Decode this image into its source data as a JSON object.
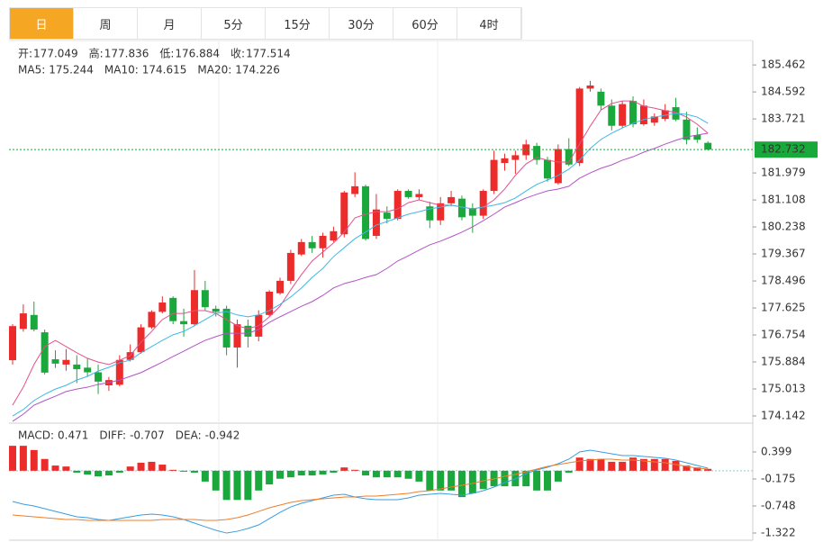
{
  "tabs": {
    "items": [
      "日",
      "周",
      "月",
      "5分",
      "15分",
      "30分",
      "60分",
      "4时"
    ],
    "active": 0
  },
  "chart_data": [
    {
      "type": "candlestick",
      "readout": [
        {
          "label": "开:",
          "value": 177.049
        },
        {
          "label": "高:",
          "value": 177.836
        },
        {
          "label": "低:",
          "value": 176.884
        },
        {
          "label": "收:",
          "value": 177.514
        }
      ],
      "readout_color": "#e0312b",
      "ma_readout": [
        {
          "label": "MA5:",
          "value": 175.244,
          "color": "#e4508c"
        },
        {
          "label": "MA10:",
          "value": 174.615,
          "color": "#3fb8e6"
        },
        {
          "label": "MA20:",
          "value": 174.226,
          "color": "#b353c7"
        }
      ],
      "up_color": "#ec2b2b",
      "down_color": "#1aa83c",
      "open": [
        175.94,
        176.95,
        177.4,
        176.84,
        175.97,
        175.8,
        175.8,
        175.7,
        175.55,
        175.13,
        175.15,
        175.95,
        176.2,
        177.0,
        177.5,
        177.95,
        177.2,
        177.1,
        178.2,
        177.6,
        177.6,
        176.35,
        177.05,
        176.7,
        177.4,
        178.1,
        178.5,
        179.35,
        179.75,
        179.55,
        179.8,
        180.0,
        181.3,
        181.55,
        179.95,
        180.7,
        180.5,
        181.4,
        181.2,
        180.9,
        180.45,
        181.0,
        181.15,
        180.85,
        180.6,
        181.4,
        182.3,
        182.4,
        182.55,
        182.85,
        182.4,
        181.65,
        182.75,
        182.3,
        184.7,
        184.6,
        184.15,
        183.5,
        184.3,
        183.55,
        183.6,
        183.72,
        184.1,
        183.7,
        183.2,
        182.95
      ],
      "high": [
        177.1,
        177.74,
        177.83,
        176.93,
        176.26,
        176.3,
        176.1,
        176.0,
        175.8,
        175.4,
        176.1,
        176.45,
        177.1,
        177.55,
        178.0,
        178.0,
        177.6,
        178.85,
        178.5,
        177.7,
        177.7,
        177.25,
        177.25,
        177.55,
        178.2,
        178.6,
        179.5,
        179.85,
        179.95,
        180.05,
        180.25,
        181.4,
        182.0,
        181.6,
        181.3,
        180.9,
        181.45,
        181.45,
        181.45,
        181.05,
        181.2,
        181.4,
        181.25,
        181.0,
        181.45,
        182.7,
        182.6,
        182.7,
        183.05,
        182.95,
        182.5,
        182.9,
        183.1,
        184.75,
        184.95,
        184.7,
        184.35,
        184.3,
        184.45,
        184.35,
        183.9,
        184.2,
        184.4,
        183.95,
        183.45,
        183.0
      ],
      "low": [
        175.8,
        176.86,
        176.87,
        175.48,
        175.69,
        175.6,
        175.2,
        175.4,
        174.85,
        174.95,
        175.1,
        175.9,
        176.15,
        176.95,
        177.45,
        177.1,
        176.7,
        177.05,
        177.55,
        177.35,
        176.1,
        175.7,
        176.35,
        176.55,
        177.35,
        178.05,
        178.4,
        179.3,
        179.4,
        179.25,
        179.75,
        179.9,
        181.2,
        179.8,
        179.85,
        180.35,
        180.45,
        181.15,
        181.1,
        180.2,
        180.3,
        180.9,
        180.45,
        180.05,
        180.5,
        181.3,
        182.05,
        181.95,
        182.4,
        182.25,
        181.7,
        181.6,
        182.2,
        182.2,
        184.6,
        184.0,
        183.35,
        183.45,
        183.45,
        183.5,
        183.5,
        183.65,
        183.65,
        182.9,
        182.95,
        182.7
      ],
      "close": [
        177.04,
        177.45,
        176.93,
        175.54,
        175.83,
        175.95,
        175.65,
        175.55,
        175.25,
        175.3,
        175.95,
        176.2,
        177.0,
        177.5,
        177.8,
        177.2,
        177.1,
        178.2,
        177.65,
        177.5,
        176.35,
        177.1,
        176.7,
        177.4,
        178.15,
        178.5,
        179.4,
        179.75,
        179.55,
        179.95,
        180.1,
        181.35,
        181.55,
        179.85,
        180.8,
        180.5,
        181.4,
        181.2,
        181.3,
        180.45,
        181.0,
        181.2,
        180.55,
        180.6,
        181.4,
        182.4,
        182.45,
        182.55,
        182.9,
        182.4,
        181.8,
        182.75,
        182.25,
        184.7,
        184.8,
        184.15,
        183.5,
        184.2,
        183.55,
        184.15,
        183.8,
        184.0,
        183.7,
        183.05,
        183.05,
        182.732
      ],
      "series": [
        {
          "color": "#e4508c",
          "values": [
            174.49,
            175.07,
            175.8,
            176.38,
            176.58,
            176.38,
            176.18,
            176.0,
            175.88,
            175.8,
            175.94,
            176.09,
            176.52,
            176.87,
            177.25,
            177.45,
            177.45,
            177.54,
            177.54,
            177.45,
            177.25,
            177.05,
            176.96,
            177.05,
            177.34,
            177.68,
            178.21,
            178.7,
            179.14,
            179.43,
            179.72,
            180.07,
            180.53,
            180.65,
            180.73,
            180.73,
            180.82,
            181.02,
            181.11,
            181.02,
            180.94,
            180.94,
            180.88,
            180.82,
            180.88,
            181.11,
            181.46,
            181.9,
            182.27,
            182.48,
            182.39,
            182.33,
            182.33,
            182.91,
            183.49,
            184.01,
            184.22,
            184.3,
            184.3,
            184.13,
            184.07,
            183.99,
            183.93,
            183.78,
            183.55,
            183.26
          ]
        },
        {
          "color": "#3fb8e6",
          "values": [
            174.14,
            174.35,
            174.64,
            174.84,
            175.01,
            175.13,
            175.3,
            175.42,
            175.59,
            175.71,
            175.86,
            175.94,
            176.18,
            176.38,
            176.58,
            176.76,
            176.87,
            177.05,
            177.25,
            177.45,
            177.51,
            177.4,
            177.34,
            177.4,
            177.54,
            177.74,
            177.98,
            178.27,
            178.61,
            178.9,
            179.28,
            179.57,
            179.86,
            180.07,
            180.3,
            180.41,
            180.53,
            180.65,
            180.73,
            180.82,
            180.88,
            180.94,
            180.88,
            180.82,
            180.88,
            180.94,
            181.02,
            181.17,
            181.4,
            181.61,
            181.75,
            181.9,
            182.1,
            182.39,
            182.77,
            183.06,
            183.26,
            183.43,
            183.58,
            183.7,
            183.78,
            183.84,
            183.9,
            183.87,
            183.78,
            183.58
          ]
        },
        {
          "color": "#b353c7",
          "values": [
            173.97,
            174.2,
            174.49,
            174.64,
            174.78,
            174.93,
            175.01,
            175.07,
            175.16,
            175.22,
            175.3,
            175.42,
            175.54,
            175.71,
            175.88,
            176.06,
            176.23,
            176.41,
            176.58,
            176.7,
            176.81,
            176.81,
            176.81,
            176.93,
            177.16,
            177.34,
            177.51,
            177.68,
            177.83,
            178.03,
            178.27,
            178.41,
            178.5,
            178.61,
            178.7,
            178.9,
            179.14,
            179.31,
            179.49,
            179.66,
            179.78,
            179.92,
            180.07,
            180.24,
            180.44,
            180.65,
            180.88,
            181.02,
            181.17,
            181.29,
            181.4,
            181.46,
            181.55,
            181.81,
            181.98,
            182.13,
            182.24,
            182.39,
            182.5,
            182.65,
            182.77,
            182.91,
            183.03,
            183.14,
            183.2,
            183.26
          ]
        }
      ],
      "last_price": 182.732,
      "last_price_color": "#19a93a",
      "ylim": [
        173.91,
        186.25
      ],
      "yticks": [
        185.462,
        184.592,
        183.721,
        181.979,
        181.108,
        180.238,
        179.367,
        178.496,
        177.625,
        176.754,
        175.884,
        175.013,
        174.142
      ]
    },
    {
      "type": "macd",
      "readout": [
        {
          "label": "MACD:",
          "value": 0.471,
          "color": "#e0312b"
        },
        {
          "label": "DIFF:",
          "value": -0.707,
          "color": "#3a9de0"
        },
        {
          "label": "DEA:",
          "value": -0.942,
          "color": "#f07d2a"
        }
      ],
      "up_color": "#ec2b2b",
      "down_color": "#1aa83c",
      "histogram": [
        0.53,
        0.53,
        0.44,
        0.25,
        0.11,
        0.09,
        -0.04,
        -0.08,
        -0.12,
        -0.1,
        -0.04,
        0.09,
        0.17,
        0.19,
        0.13,
        0.02,
        -0.02,
        -0.04,
        -0.23,
        -0.42,
        -0.62,
        -0.62,
        -0.62,
        -0.42,
        -0.29,
        -0.17,
        -0.14,
        -0.1,
        -0.1,
        -0.08,
        -0.04,
        0.07,
        0.02,
        -0.1,
        -0.14,
        -0.14,
        -0.14,
        -0.17,
        -0.23,
        -0.42,
        -0.42,
        -0.42,
        -0.56,
        -0.48,
        -0.39,
        -0.33,
        -0.33,
        -0.33,
        -0.33,
        -0.42,
        -0.42,
        -0.23,
        -0.04,
        0.28,
        0.25,
        0.25,
        0.19,
        0.19,
        0.28,
        0.25,
        0.25,
        0.25,
        0.21,
        0.11,
        0.07,
        0.04
      ],
      "series": [
        {
          "color": "#3a9de0",
          "values": [
            -0.653,
            -0.711,
            -0.749,
            -0.806,
            -0.864,
            -0.921,
            -0.978,
            -0.997,
            -1.036,
            -1.055,
            -1.017,
            -0.978,
            -0.94,
            -0.921,
            -0.94,
            -0.978,
            -1.036,
            -1.112,
            -1.189,
            -1.265,
            -1.323,
            -1.285,
            -1.227,
            -1.15,
            -1.017,
            -0.883,
            -0.768,
            -0.691,
            -0.634,
            -0.577,
            -0.519,
            -0.5,
            -0.558,
            -0.596,
            -0.615,
            -0.615,
            -0.615,
            -0.577,
            -0.519,
            -0.5,
            -0.481,
            -0.5,
            -0.519,
            -0.481,
            -0.424,
            -0.347,
            -0.251,
            -0.175,
            -0.06,
            0.016,
            0.074,
            0.15,
            0.246,
            0.399,
            0.437,
            0.399,
            0.361,
            0.322,
            0.322,
            0.303,
            0.284,
            0.265,
            0.227,
            0.169,
            0.112,
            0.055
          ]
        },
        {
          "color": "#f07d2a",
          "values": [
            -0.94,
            -0.959,
            -0.978,
            -0.997,
            -1.017,
            -1.036,
            -1.036,
            -1.055,
            -1.055,
            -1.055,
            -1.055,
            -1.055,
            -1.055,
            -1.055,
            -1.036,
            -1.036,
            -1.036,
            -1.036,
            -1.055,
            -1.055,
            -1.036,
            -0.997,
            -0.94,
            -0.864,
            -0.787,
            -0.73,
            -0.672,
            -0.634,
            -0.615,
            -0.596,
            -0.577,
            -0.558,
            -0.558,
            -0.538,
            -0.538,
            -0.519,
            -0.5,
            -0.481,
            -0.443,
            -0.424,
            -0.385,
            -0.347,
            -0.309,
            -0.27,
            -0.213,
            -0.175,
            -0.118,
            -0.079,
            -0.022,
            0.036,
            0.093,
            0.131,
            0.169,
            0.208,
            0.227,
            0.246,
            0.246,
            0.227,
            0.227,
            0.208,
            0.189,
            0.169,
            0.131,
            0.093,
            0.055,
            0.036
          ]
        }
      ],
      "ylim": [
        -1.475,
        0.896
      ],
      "yticks": [
        0.399,
        -0.175,
        -0.748,
        -1.322
      ]
    }
  ]
}
